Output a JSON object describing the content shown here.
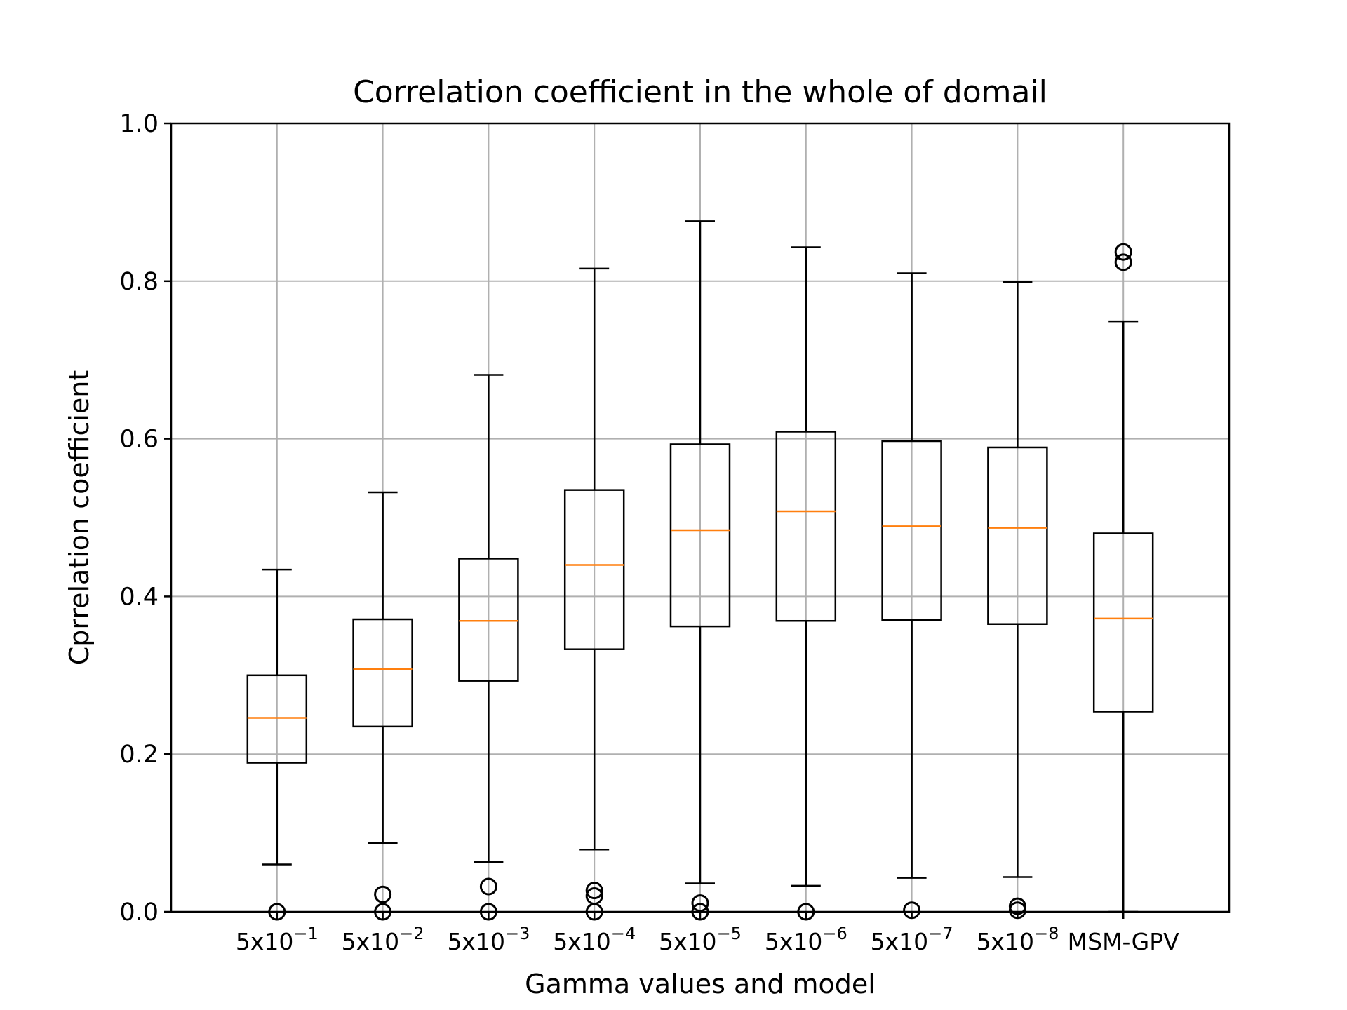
{
  "chart_data": {
    "type": "box",
    "title": "Correlation coefficient in the whole of domail",
    "xlabel": "Gamma values and model",
    "ylabel": "Cprrelation coefficient",
    "ylim": [
      0.0,
      1.0
    ],
    "yticks": [
      "0.0",
      "0.2",
      "0.4",
      "0.6",
      "0.8",
      "1.0"
    ],
    "grid": true,
    "categories": [
      {
        "base": "5x10",
        "exp": "−1"
      },
      {
        "base": "5x10",
        "exp": "−2"
      },
      {
        "base": "5x10",
        "exp": "−3"
      },
      {
        "base": "5x10",
        "exp": "−4"
      },
      {
        "base": "5x10",
        "exp": "−5"
      },
      {
        "base": "5x10",
        "exp": "−6"
      },
      {
        "base": "5x10",
        "exp": "−7"
      },
      {
        "base": "5x10",
        "exp": "−8"
      },
      {
        "base": "MSM-GPV",
        "exp": ""
      }
    ],
    "boxes": [
      {
        "whisker_low": 0.06,
        "q1": 0.189,
        "median": 0.246,
        "q3": 0.3,
        "whisker_high": 0.434,
        "outliers": [
          0.0
        ]
      },
      {
        "whisker_low": 0.087,
        "q1": 0.235,
        "median": 0.308,
        "q3": 0.371,
        "whisker_high": 0.532,
        "outliers": [
          0.0,
          0.022
        ]
      },
      {
        "whisker_low": 0.063,
        "q1": 0.293,
        "median": 0.369,
        "q3": 0.448,
        "whisker_high": 0.681,
        "outliers": [
          0.0,
          0.032
        ]
      },
      {
        "whisker_low": 0.079,
        "q1": 0.333,
        "median": 0.44,
        "q3": 0.535,
        "whisker_high": 0.816,
        "outliers": [
          0.0,
          0.02,
          0.027
        ]
      },
      {
        "whisker_low": 0.036,
        "q1": 0.362,
        "median": 0.484,
        "q3": 0.593,
        "whisker_high": 0.876,
        "outliers": [
          0.0,
          0.011
        ]
      },
      {
        "whisker_low": 0.033,
        "q1": 0.369,
        "median": 0.508,
        "q3": 0.609,
        "whisker_high": 0.843,
        "outliers": [
          0.0
        ]
      },
      {
        "whisker_low": 0.043,
        "q1": 0.37,
        "median": 0.489,
        "q3": 0.597,
        "whisker_high": 0.81,
        "outliers": [
          0.002
        ]
      },
      {
        "whisker_low": 0.044,
        "q1": 0.365,
        "median": 0.487,
        "q3": 0.589,
        "whisker_high": 0.799,
        "outliers": [
          0.002,
          0.007
        ]
      },
      {
        "whisker_low": 0.0,
        "q1": 0.254,
        "median": 0.372,
        "q3": 0.48,
        "whisker_high": 0.749,
        "outliers": [
          0.824,
          0.837
        ]
      }
    ],
    "colors": {
      "box": "#000000",
      "median": "#ff7f0e",
      "grid": "#b0b0b0"
    }
  }
}
